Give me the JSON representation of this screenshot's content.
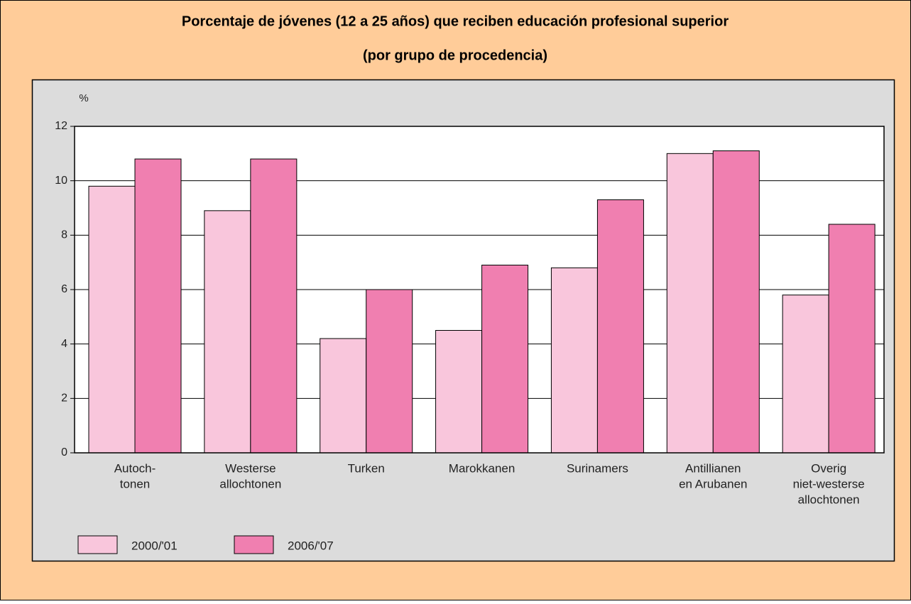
{
  "chart_data": {
    "type": "bar",
    "title": "Porcentaje de jóvenes (12 a 25 años) que reciben educación profesional superior",
    "subtitle": "(por grupo de procedencia)",
    "y_label": "%",
    "categories": [
      [
        "Autoch-",
        "tonen"
      ],
      [
        "Westerse",
        "allochtonen"
      ],
      [
        "Turken"
      ],
      [
        "Marokkanen"
      ],
      [
        "Surinamers"
      ],
      [
        "Antillianen",
        "en Arubanen"
      ],
      [
        "Overig",
        "niet-westerse",
        "allochtonen"
      ]
    ],
    "series": [
      {
        "name": "2000/'01",
        "color": "#f9c6dc",
        "values": [
          9.8,
          8.9,
          4.2,
          4.5,
          6.8,
          11.0,
          5.8
        ]
      },
      {
        "name": "2006/'07",
        "color": "#f07fb0",
        "values": [
          10.8,
          10.8,
          6.0,
          6.9,
          9.3,
          11.1,
          8.4
        ]
      }
    ],
    "ylim": [
      0,
      12
    ],
    "yticks": [
      0,
      2,
      4,
      6,
      8,
      10,
      12
    ],
    "grid": true
  }
}
